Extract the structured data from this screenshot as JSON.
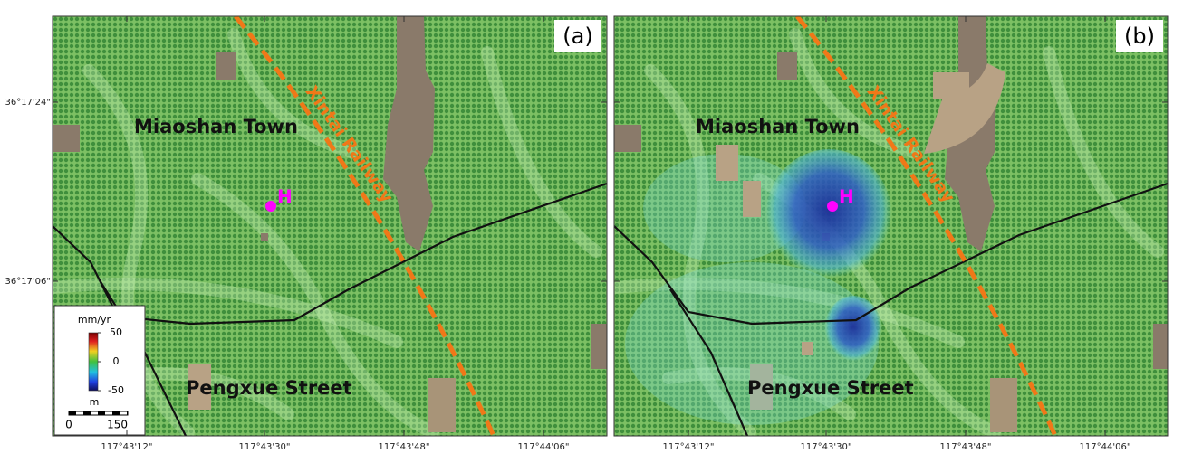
{
  "panels": [
    {
      "label": "(a)"
    },
    {
      "label": "(b)"
    }
  ],
  "places": {
    "town": "Miaoshan Town",
    "street": "Pengxue Street",
    "railway": "Xintai Railway",
    "point": "H"
  },
  "lon_ticks": [
    "117°43'12\"",
    "117°43'30\"",
    "117°43'48\"",
    "117°44'06\""
  ],
  "lat_ticks": [
    "36°17'24\"",
    "36°17'06\""
  ],
  "colorbar": {
    "unit": "mm/yr",
    "lim": [
      -50,
      50
    ],
    "ticks": [
      50,
      0,
      -50
    ]
  },
  "scale": {
    "unit": "m",
    "labels": [
      "0",
      "150"
    ]
  }
}
